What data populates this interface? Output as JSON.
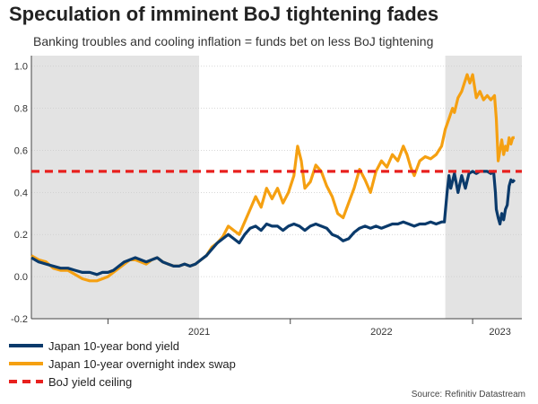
{
  "title": "Speculation of imminent BoJ tightening fades",
  "subtitle": "Banking troubles and cooling inflation = funds bet on less BoJ tightening",
  "source": "Source: Refinitiv Datastream",
  "colors": {
    "bond": "#0a3a6b",
    "swap": "#f5a011",
    "ceiling": "#e8201e",
    "shade": "#e3e3e3",
    "grid": "#cccccc",
    "axis": "#444444"
  },
  "chart_data": {
    "type": "line",
    "title": "Speculation of imminent BoJ tightening fades",
    "xlabel": "",
    "ylabel": "",
    "xlim": [
      2020.58,
      2023.27
    ],
    "ylim": [
      -0.2,
      1.05
    ],
    "yticks": [
      -0.2,
      0.0,
      0.2,
      0.4,
      0.6,
      0.8,
      1.0
    ],
    "ytick_labels": [
      "-0.2",
      "0.0",
      "0.2",
      "0.4",
      "0.6",
      "0.8",
      "1.0"
    ],
    "xtick_labels": [
      {
        "label": "2021",
        "x": 2021.5
      },
      {
        "label": "2022",
        "x": 2022.5
      },
      {
        "label": "2023",
        "x": 2023.15
      }
    ],
    "year_dividers": [
      2021.0,
      2022.0,
      2023.0
    ],
    "shaded_regions": [
      [
        2020.58,
        2021.5
      ],
      [
        2022.85,
        2023.27
      ]
    ],
    "grid": true,
    "series": [
      {
        "name": "Japan 10-year bond yield",
        "style": "solid",
        "points": [
          [
            2020.58,
            0.09
          ],
          [
            2020.62,
            0.07
          ],
          [
            2020.66,
            0.06
          ],
          [
            2020.7,
            0.05
          ],
          [
            2020.74,
            0.04
          ],
          [
            2020.78,
            0.04
          ],
          [
            2020.82,
            0.03
          ],
          [
            2020.86,
            0.02
          ],
          [
            2020.9,
            0.02
          ],
          [
            2020.94,
            0.01
          ],
          [
            2020.97,
            0.02
          ],
          [
            2021.0,
            0.02
          ],
          [
            2021.03,
            0.03
          ],
          [
            2021.06,
            0.05
          ],
          [
            2021.09,
            0.07
          ],
          [
            2021.12,
            0.08
          ],
          [
            2021.15,
            0.09
          ],
          [
            2021.18,
            0.08
          ],
          [
            2021.21,
            0.07
          ],
          [
            2021.24,
            0.08
          ],
          [
            2021.27,
            0.09
          ],
          [
            2021.3,
            0.07
          ],
          [
            2021.33,
            0.06
          ],
          [
            2021.36,
            0.05
          ],
          [
            2021.39,
            0.05
          ],
          [
            2021.42,
            0.06
          ],
          [
            2021.45,
            0.05
          ],
          [
            2021.48,
            0.06
          ],
          [
            2021.51,
            0.08
          ],
          [
            2021.54,
            0.1
          ],
          [
            2021.57,
            0.13
          ],
          [
            2021.6,
            0.16
          ],
          [
            2021.63,
            0.18
          ],
          [
            2021.66,
            0.2
          ],
          [
            2021.69,
            0.18
          ],
          [
            2021.72,
            0.16
          ],
          [
            2021.75,
            0.2
          ],
          [
            2021.78,
            0.23
          ],
          [
            2021.81,
            0.24
          ],
          [
            2021.84,
            0.22
          ],
          [
            2021.87,
            0.25
          ],
          [
            2021.9,
            0.24
          ],
          [
            2021.93,
            0.24
          ],
          [
            2021.96,
            0.22
          ],
          [
            2021.99,
            0.24
          ],
          [
            2022.02,
            0.25
          ],
          [
            2022.05,
            0.24
          ],
          [
            2022.08,
            0.22
          ],
          [
            2022.11,
            0.24
          ],
          [
            2022.14,
            0.25
          ],
          [
            2022.17,
            0.24
          ],
          [
            2022.2,
            0.23
          ],
          [
            2022.23,
            0.2
          ],
          [
            2022.26,
            0.19
          ],
          [
            2022.29,
            0.17
          ],
          [
            2022.32,
            0.18
          ],
          [
            2022.35,
            0.21
          ],
          [
            2022.38,
            0.23
          ],
          [
            2022.41,
            0.24
          ],
          [
            2022.44,
            0.23
          ],
          [
            2022.47,
            0.24
          ],
          [
            2022.5,
            0.23
          ],
          [
            2022.53,
            0.24
          ],
          [
            2022.56,
            0.25
          ],
          [
            2022.59,
            0.25
          ],
          [
            2022.62,
            0.26
          ],
          [
            2022.65,
            0.25
          ],
          [
            2022.68,
            0.24
          ],
          [
            2022.71,
            0.25
          ],
          [
            2022.74,
            0.25
          ],
          [
            2022.77,
            0.26
          ],
          [
            2022.8,
            0.25
          ],
          [
            2022.83,
            0.26
          ],
          [
            2022.845,
            0.26
          ],
          [
            2022.86,
            0.4
          ],
          [
            2022.87,
            0.48
          ],
          [
            2022.88,
            0.42
          ],
          [
            2022.9,
            0.49
          ],
          [
            2022.92,
            0.4
          ],
          [
            2022.94,
            0.48
          ],
          [
            2022.96,
            0.42
          ],
          [
            2022.98,
            0.49
          ],
          [
            2023.0,
            0.5
          ],
          [
            2023.02,
            0.49
          ],
          [
            2023.04,
            0.5
          ],
          [
            2023.06,
            0.5
          ],
          [
            2023.08,
            0.5
          ],
          [
            2023.1,
            0.49
          ],
          [
            2023.115,
            0.5
          ],
          [
            2023.125,
            0.4
          ],
          [
            2023.13,
            0.32
          ],
          [
            2023.14,
            0.28
          ],
          [
            2023.15,
            0.25
          ],
          [
            2023.16,
            0.3
          ],
          [
            2023.17,
            0.27
          ],
          [
            2023.18,
            0.32
          ],
          [
            2023.19,
            0.34
          ],
          [
            2023.2,
            0.43
          ],
          [
            2023.21,
            0.46
          ],
          [
            2023.22,
            0.45
          ],
          [
            2023.23,
            0.46
          ]
        ]
      },
      {
        "name": "Japan 10-year overnight index swap",
        "style": "solid",
        "points": [
          [
            2020.58,
            0.1
          ],
          [
            2020.62,
            0.08
          ],
          [
            2020.66,
            0.07
          ],
          [
            2020.7,
            0.04
          ],
          [
            2020.74,
            0.03
          ],
          [
            2020.78,
            0.03
          ],
          [
            2020.82,
            0.01
          ],
          [
            2020.86,
            -0.01
          ],
          [
            2020.9,
            -0.02
          ],
          [
            2020.94,
            -0.02
          ],
          [
            2020.97,
            -0.01
          ],
          [
            2021.0,
            0.0
          ],
          [
            2021.03,
            0.02
          ],
          [
            2021.06,
            0.04
          ],
          [
            2021.09,
            0.06
          ],
          [
            2021.12,
            0.08
          ],
          [
            2021.15,
            0.08
          ],
          [
            2021.18,
            0.07
          ],
          [
            2021.21,
            0.06
          ],
          [
            2021.24,
            0.08
          ],
          [
            2021.27,
            0.09
          ],
          [
            2021.3,
            0.07
          ],
          [
            2021.33,
            0.06
          ],
          [
            2021.36,
            0.05
          ],
          [
            2021.39,
            0.05
          ],
          [
            2021.42,
            0.06
          ],
          [
            2021.45,
            0.05
          ],
          [
            2021.48,
            0.06
          ],
          [
            2021.51,
            0.08
          ],
          [
            2021.54,
            0.1
          ],
          [
            2021.57,
            0.14
          ],
          [
            2021.6,
            0.16
          ],
          [
            2021.63,
            0.19
          ],
          [
            2021.66,
            0.24
          ],
          [
            2021.69,
            0.22
          ],
          [
            2021.72,
            0.2
          ],
          [
            2021.75,
            0.26
          ],
          [
            2021.78,
            0.32
          ],
          [
            2021.81,
            0.38
          ],
          [
            2021.84,
            0.33
          ],
          [
            2021.87,
            0.42
          ],
          [
            2021.9,
            0.37
          ],
          [
            2021.93,
            0.42
          ],
          [
            2021.96,
            0.35
          ],
          [
            2021.99,
            0.4
          ],
          [
            2022.02,
            0.48
          ],
          [
            2022.04,
            0.62
          ],
          [
            2022.06,
            0.55
          ],
          [
            2022.08,
            0.42
          ],
          [
            2022.11,
            0.45
          ],
          [
            2022.14,
            0.53
          ],
          [
            2022.17,
            0.5
          ],
          [
            2022.2,
            0.43
          ],
          [
            2022.23,
            0.38
          ],
          [
            2022.26,
            0.3
          ],
          [
            2022.29,
            0.28
          ],
          [
            2022.32,
            0.35
          ],
          [
            2022.35,
            0.42
          ],
          [
            2022.38,
            0.51
          ],
          [
            2022.41,
            0.46
          ],
          [
            2022.44,
            0.4
          ],
          [
            2022.47,
            0.5
          ],
          [
            2022.5,
            0.55
          ],
          [
            2022.53,
            0.52
          ],
          [
            2022.56,
            0.58
          ],
          [
            2022.59,
            0.55
          ],
          [
            2022.62,
            0.62
          ],
          [
            2022.64,
            0.58
          ],
          [
            2022.66,
            0.52
          ],
          [
            2022.68,
            0.48
          ],
          [
            2022.71,
            0.55
          ],
          [
            2022.74,
            0.57
          ],
          [
            2022.77,
            0.56
          ],
          [
            2022.8,
            0.58
          ],
          [
            2022.83,
            0.62
          ],
          [
            2022.85,
            0.7
          ],
          [
            2022.87,
            0.75
          ],
          [
            2022.89,
            0.8
          ],
          [
            2022.9,
            0.78
          ],
          [
            2022.92,
            0.85
          ],
          [
            2022.94,
            0.88
          ],
          [
            2022.955,
            0.92
          ],
          [
            2022.97,
            0.96
          ],
          [
            2022.985,
            0.92
          ],
          [
            2023.0,
            0.96
          ],
          [
            2023.02,
            0.85
          ],
          [
            2023.04,
            0.88
          ],
          [
            2023.06,
            0.84
          ],
          [
            2023.08,
            0.86
          ],
          [
            2023.1,
            0.84
          ],
          [
            2023.12,
            0.86
          ],
          [
            2023.13,
            0.75
          ],
          [
            2023.14,
            0.55
          ],
          [
            2023.15,
            0.6
          ],
          [
            2023.16,
            0.65
          ],
          [
            2023.17,
            0.58
          ],
          [
            2023.18,
            0.62
          ],
          [
            2023.19,
            0.6
          ],
          [
            2023.2,
            0.66
          ],
          [
            2023.21,
            0.63
          ],
          [
            2023.22,
            0.66
          ],
          [
            2023.23,
            0.66
          ]
        ]
      },
      {
        "name": "BoJ yield ceiling",
        "style": "dashed",
        "points": [
          [
            2020.58,
            0.5
          ],
          [
            2023.27,
            0.5
          ]
        ]
      }
    ],
    "legend": {
      "position": "bottom-left",
      "entries": [
        "Japan 10-year bond yield",
        "Japan 10-year overnight index swap",
        "BoJ yield ceiling"
      ]
    }
  }
}
